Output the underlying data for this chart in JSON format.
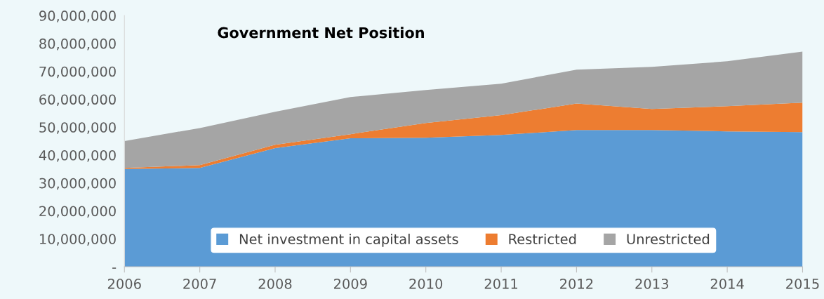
{
  "chart_data": {
    "type": "area",
    "stacked": true,
    "title": "Government Net Position",
    "categories": [
      "2006",
      "2007",
      "2008",
      "2009",
      "2010",
      "2011",
      "2012",
      "2013",
      "2014",
      "2015"
    ],
    "series": [
      {
        "name": "Net investment in capital assets",
        "color": "#5b9bd5",
        "values": [
          35000000,
          35400000,
          42500000,
          46000000,
          46200000,
          47200000,
          49000000,
          49000000,
          48500000,
          48200000
        ]
      },
      {
        "name": "Restricted",
        "color": "#ed7d31",
        "values": [
          400000,
          1000000,
          1200000,
          1500000,
          5300000,
          7100000,
          9500000,
          7500000,
          9000000,
          10600000
        ]
      },
      {
        "name": "Unrestricted",
        "color": "#a5a5a5",
        "values": [
          9600000,
          13300000,
          11800000,
          13300000,
          11800000,
          11300000,
          12100000,
          15100000,
          16100000,
          18300000
        ]
      }
    ],
    "ylim": [
      0,
      90000000
    ],
    "yticks": [
      {
        "value": 0,
        "label": "-"
      },
      {
        "value": 10000000,
        "label": "10,000,000"
      },
      {
        "value": 20000000,
        "label": "20,000,000"
      },
      {
        "value": 30000000,
        "label": "30,000,000"
      },
      {
        "value": 40000000,
        "label": "40,000,000"
      },
      {
        "value": 50000000,
        "label": "50,000,000"
      },
      {
        "value": 60000000,
        "label": "60,000,000"
      },
      {
        "value": 70000000,
        "label": "70,000,000"
      },
      {
        "value": 80000000,
        "label": "80,000,000"
      },
      {
        "value": 90000000,
        "label": "90,000,000"
      }
    ],
    "grid": false,
    "legend": "bottom"
  }
}
